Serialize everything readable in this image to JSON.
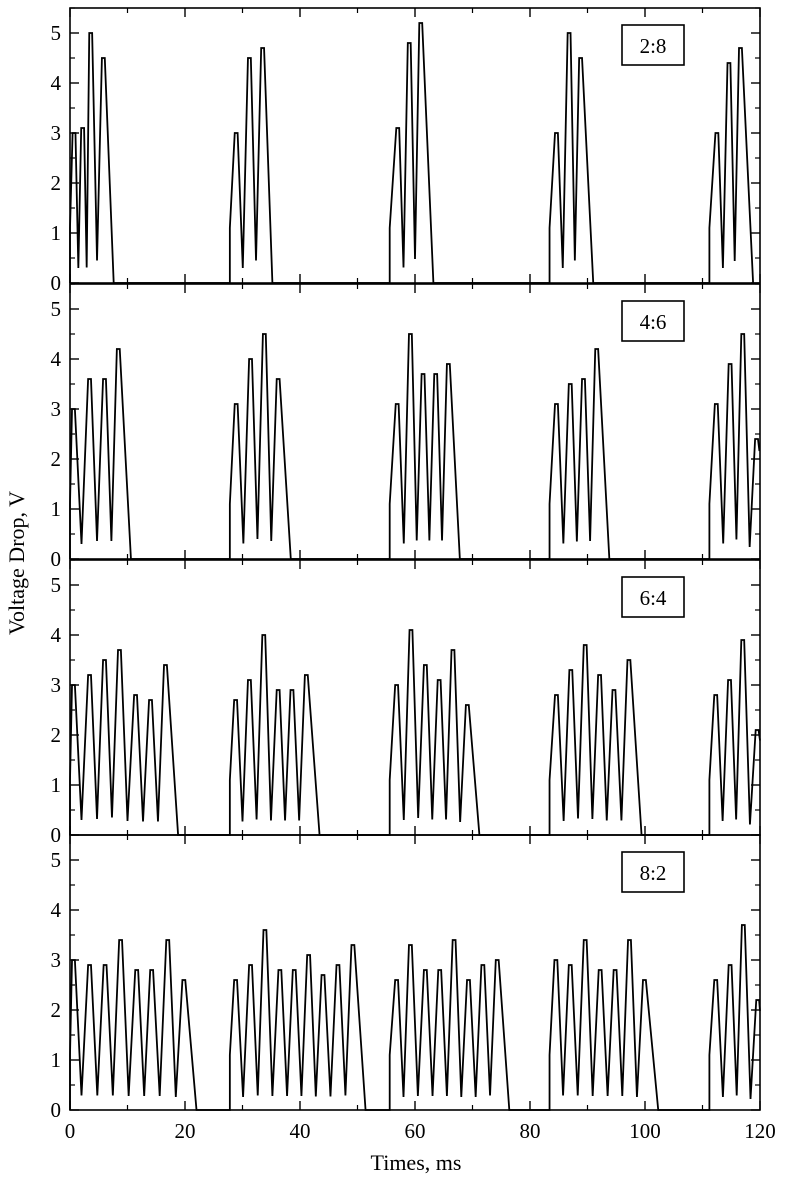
{
  "chart_data": {
    "type": "line",
    "layout": "4 vertically stacked panels sharing the x-axis",
    "xlabel": "Times, ms",
    "ylabel": "Voltage Drop, V",
    "xlim": [
      0,
      120
    ],
    "ylim": [
      0,
      5.5
    ],
    "x_ticks": [
      0,
      20,
      40,
      60,
      80,
      100,
      120
    ],
    "y_ticks": [
      0,
      1,
      2,
      3,
      4,
      5
    ],
    "grid": false,
    "line_color": "#000000",
    "ratio_box_placement": "top-right",
    "period_ms": 27.8,
    "panels": [
      {
        "label": "2:8",
        "bursts": [
          {
            "start": 0,
            "peaks": [
              [
                0.7,
                3.0
              ],
              [
                2.2,
                3.1
              ],
              [
                3.6,
                5.0
              ],
              [
                5.8,
                4.5
              ],
              [
                7.6,
                0
              ]
            ]
          },
          {
            "start": 27.8,
            "peaks": [
              [
                28.9,
                3.0
              ],
              [
                31.2,
                4.5
              ],
              [
                33.5,
                4.7
              ],
              [
                35.2,
                0
              ]
            ]
          },
          {
            "start": 55.6,
            "peaks": [
              [
                57.0,
                3.1
              ],
              [
                59.0,
                4.8
              ],
              [
                61.0,
                5.2
              ],
              [
                63.2,
                0
              ]
            ]
          },
          {
            "start": 83.4,
            "peaks": [
              [
                84.6,
                3.0
              ],
              [
                86.8,
                5.0
              ],
              [
                88.8,
                4.5
              ],
              [
                91.0,
                0
              ]
            ]
          },
          {
            "start": 111.2,
            "peaks": [
              [
                112.5,
                3.0
              ],
              [
                114.6,
                4.4
              ],
              [
                116.6,
                4.7
              ],
              [
                118.8,
                0
              ]
            ]
          }
        ]
      },
      {
        "label": "4:6",
        "bursts": [
          {
            "start": 0,
            "peaks": [
              [
                0.6,
                3.0
              ],
              [
                3.4,
                3.6
              ],
              [
                6.0,
                3.6
              ],
              [
                8.4,
                4.2
              ],
              [
                10.6,
                0
              ]
            ]
          },
          {
            "start": 27.8,
            "peaks": [
              [
                28.9,
                3.1
              ],
              [
                31.4,
                4.0
              ],
              [
                33.8,
                4.5
              ],
              [
                36.2,
                3.6
              ],
              [
                38.4,
                0
              ]
            ]
          },
          {
            "start": 55.6,
            "peaks": [
              [
                56.9,
                3.1
              ],
              [
                59.2,
                4.5
              ],
              [
                61.4,
                3.7
              ],
              [
                63.6,
                3.7
              ],
              [
                65.8,
                3.9
              ],
              [
                67.8,
                0
              ]
            ]
          },
          {
            "start": 83.4,
            "peaks": [
              [
                84.6,
                3.1
              ],
              [
                87.0,
                3.5
              ],
              [
                89.3,
                3.6
              ],
              [
                91.6,
                4.2
              ],
              [
                93.8,
                0
              ]
            ]
          },
          {
            "start": 111.2,
            "peaks": [
              [
                112.4,
                3.1
              ],
              [
                114.8,
                3.9
              ],
              [
                117.0,
                4.5
              ],
              [
                119.4,
                2.4
              ]
            ]
          }
        ]
      },
      {
        "label": "6:4",
        "bursts": [
          {
            "start": 0,
            "peaks": [
              [
                0.6,
                3.0
              ],
              [
                3.4,
                3.2
              ],
              [
                6.0,
                3.5
              ],
              [
                8.6,
                3.7
              ],
              [
                11.4,
                2.8
              ],
              [
                14.0,
                2.7
              ],
              [
                16.6,
                3.4
              ],
              [
                18.8,
                0
              ]
            ]
          },
          {
            "start": 27.8,
            "peaks": [
              [
                28.8,
                2.7
              ],
              [
                31.2,
                3.1
              ],
              [
                33.7,
                4.0
              ],
              [
                36.2,
                2.9
              ],
              [
                38.6,
                2.9
              ],
              [
                41.1,
                3.2
              ],
              [
                43.4,
                0
              ]
            ]
          },
          {
            "start": 55.6,
            "peaks": [
              [
                56.8,
                3.0
              ],
              [
                59.3,
                4.1
              ],
              [
                61.8,
                3.4
              ],
              [
                64.2,
                3.1
              ],
              [
                66.6,
                3.7
              ],
              [
                69.1,
                2.6
              ],
              [
                71.2,
                0
              ]
            ]
          },
          {
            "start": 83.4,
            "peaks": [
              [
                84.6,
                2.8
              ],
              [
                87.1,
                3.3
              ],
              [
                89.6,
                3.8
              ],
              [
                92.1,
                3.2
              ],
              [
                94.6,
                2.9
              ],
              [
                97.2,
                3.5
              ],
              [
                99.4,
                0
              ]
            ]
          },
          {
            "start": 111.2,
            "peaks": [
              [
                112.3,
                2.8
              ],
              [
                114.7,
                3.1
              ],
              [
                117.0,
                3.9
              ],
              [
                119.5,
                2.1
              ]
            ]
          }
        ]
      },
      {
        "label": "8:2",
        "bursts": [
          {
            "start": 0,
            "peaks": [
              [
                0.6,
                3.0
              ],
              [
                3.4,
                2.9
              ],
              [
                6.1,
                2.9
              ],
              [
                8.8,
                3.4
              ],
              [
                11.6,
                2.8
              ],
              [
                14.2,
                2.8
              ],
              [
                17.0,
                3.4
              ],
              [
                19.8,
                2.6
              ],
              [
                22.0,
                0
              ]
            ]
          },
          {
            "start": 27.8,
            "peaks": [
              [
                28.8,
                2.6
              ],
              [
                31.4,
                2.9
              ],
              [
                33.9,
                3.6
              ],
              [
                36.5,
                2.8
              ],
              [
                39.0,
                2.8
              ],
              [
                41.5,
                3.1
              ],
              [
                44.0,
                2.7
              ],
              [
                46.6,
                2.9
              ],
              [
                49.2,
                3.3
              ],
              [
                51.4,
                0
              ]
            ]
          },
          {
            "start": 55.6,
            "peaks": [
              [
                56.8,
                2.6
              ],
              [
                59.2,
                3.3
              ],
              [
                61.8,
                2.8
              ],
              [
                64.3,
                2.8
              ],
              [
                66.8,
                3.4
              ],
              [
                69.3,
                2.6
              ],
              [
                71.8,
                2.9
              ],
              [
                74.3,
                3.0
              ],
              [
                76.4,
                0
              ]
            ]
          },
          {
            "start": 83.4,
            "peaks": [
              [
                84.5,
                3.0
              ],
              [
                87.0,
                2.9
              ],
              [
                89.6,
                3.4
              ],
              [
                92.2,
                2.8
              ],
              [
                94.8,
                2.8
              ],
              [
                97.3,
                3.4
              ],
              [
                99.9,
                2.6
              ],
              [
                102.3,
                0
              ]
            ]
          },
          {
            "start": 111.2,
            "peaks": [
              [
                112.3,
                2.6
              ],
              [
                114.8,
                2.9
              ],
              [
                117.1,
                3.7
              ],
              [
                119.6,
                2.2
              ]
            ]
          }
        ]
      }
    ]
  }
}
